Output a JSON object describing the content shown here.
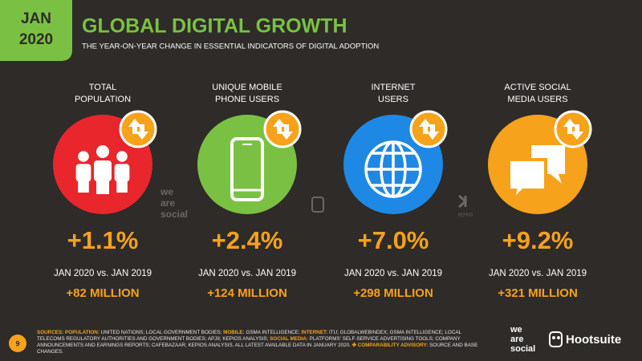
{
  "header": {
    "badge_month": "JAN",
    "badge_year": "2020",
    "title": "GLOBAL DIGITAL GROWTH",
    "subtitle": "THE YEAR-ON-YEAR CHANGE IN ESSENTIAL INDICATORS OF DIGITAL ADOPTION"
  },
  "indicators": [
    {
      "label": [
        "TOTAL",
        "POPULATION"
      ],
      "change": "+1.1%",
      "period": "JAN 2020 vs. JAN 2019",
      "absolute": "+82 MILLION",
      "color": "#e8262c"
    },
    {
      "label": [
        "UNIQUE MOBILE",
        "PHONE USERS"
      ],
      "change": "+2.4%",
      "period": "JAN 2020 vs. JAN 2019",
      "absolute": "+124 MILLION",
      "color": "#7ac143"
    },
    {
      "label": [
        "INTERNET",
        "USERS"
      ],
      "change": "+7.0%",
      "period": "JAN 2020 vs. JAN 2019",
      "absolute": "+298 MILLION",
      "color": "#1e88e5"
    },
    {
      "label": [
        "ACTIVE SOCIAL",
        "MEDIA USERS"
      ],
      "change": "+9.2%",
      "period": "JAN 2020 vs. JAN 2019",
      "absolute": "+321 MILLION",
      "color": "#f7a21b"
    }
  ],
  "watermarks": {
    "we": "we",
    "are": "are",
    "social": "social",
    "kepios": "KEPIOS"
  },
  "footer": {
    "page": "9",
    "sources": [
      {
        "label": "SOURCES:"
      },
      {
        "label": "POPULATION:",
        "text": "UNITED NATIONS; LOCAL GOVERNMENT BODIES;"
      },
      {
        "label": "MOBILE:",
        "text": "GSMA INTELLIGENCE;"
      },
      {
        "label": "INTERNET:",
        "text": "ITU; GLOBALWEBINDEX; GSMA INTELLIGENCE; LOCAL TELECOMS REGULATORY AUTHORITIES AND GOVERNMENT BODIES; APJII; KEPIOS ANALYSIS;"
      },
      {
        "label": "SOCIAL MEDIA:",
        "text": "PLATFORMS' SELF-SERVICE ADVERTISING TOOLS; COMPANY ANNOUNCEMENTS AND EARNINGS REPORTS; CAFEBAZAAR; KEPIOS ANALYSIS. ALL LATEST AVAILABLE DATA IN JANUARY 2020."
      },
      {
        "label": "✤ COMPARABILITY ADVISORY:",
        "text": "SOURCE AND BASE CHANGES."
      }
    ],
    "logo_we": "we",
    "logo_are": "are",
    "logo_social": "social",
    "logo_hootsuite": "Hootsuite"
  }
}
